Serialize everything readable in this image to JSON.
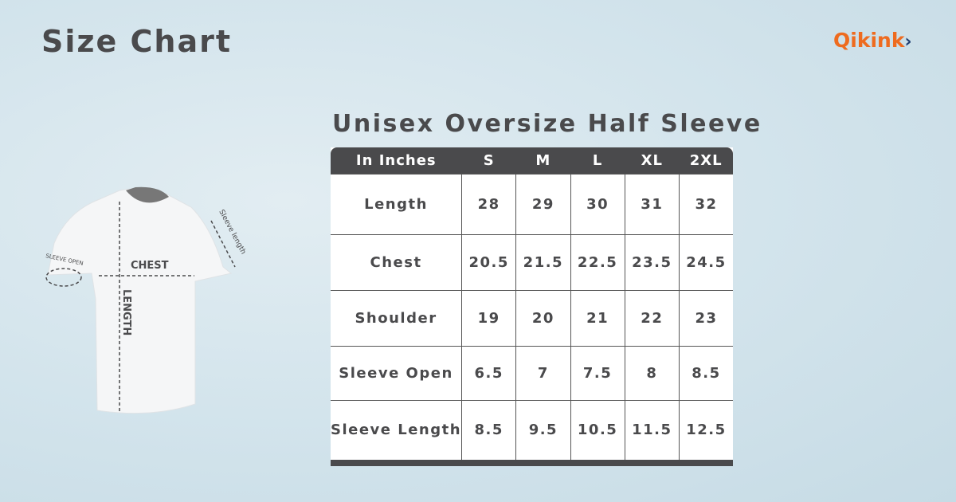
{
  "page": {
    "title": "Size Chart",
    "logo": "Qikink",
    "logo_chevron": "›"
  },
  "chart": {
    "title": "Unisex Oversize Half Sleeve"
  },
  "diagram": {
    "chest": "CHEST",
    "length": "LENGTH",
    "sleeve_open": "SLEEVE OPEN",
    "sleeve_length": "Sleeve length"
  },
  "colors": {
    "header": "#4a4a4c",
    "logo_orange": "#ee6b1f",
    "logo_navy": "#1f3f73"
  },
  "chart_data": {
    "type": "table",
    "title": "Unisex Oversize Half Sleeve",
    "columns": [
      "In Inches",
      "S",
      "M",
      "L",
      "XL",
      "2XL"
    ],
    "rows": [
      [
        "Length",
        "28",
        "29",
        "30",
        "31",
        "32"
      ],
      [
        "Chest",
        "20.5",
        "21.5",
        "22.5",
        "23.5",
        "24.5"
      ],
      [
        "Shoulder",
        "19",
        "20",
        "21",
        "22",
        "23"
      ],
      [
        "Sleeve Open",
        "6.5",
        "7",
        "7.5",
        "8",
        "8.5"
      ],
      [
        "Sleeve Length",
        "8.5",
        "9.5",
        "10.5",
        "11.5",
        "12.5"
      ]
    ]
  }
}
